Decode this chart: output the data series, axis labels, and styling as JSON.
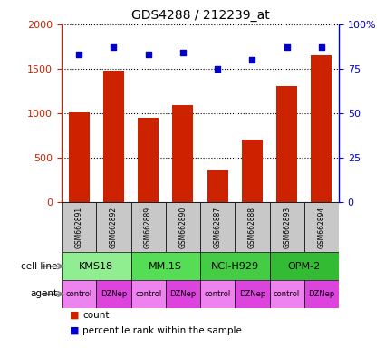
{
  "title": "GDS4288 / 212239_at",
  "samples": [
    "GSM662891",
    "GSM662892",
    "GSM662889",
    "GSM662890",
    "GSM662887",
    "GSM662888",
    "GSM662893",
    "GSM662894"
  ],
  "counts": [
    1010,
    1480,
    950,
    1090,
    350,
    700,
    1300,
    1650
  ],
  "percentile_ranks": [
    83,
    87,
    83,
    84,
    75,
    80,
    87,
    87
  ],
  "cell_lines": [
    {
      "label": "KMS18",
      "span": [
        0,
        2
      ],
      "color": "#90EE90"
    },
    {
      "label": "MM.1S",
      "span": [
        2,
        4
      ],
      "color": "#55DD55"
    },
    {
      "label": "NCI-H929",
      "span": [
        4,
        6
      ],
      "color": "#44CC44"
    },
    {
      "label": "OPM-2",
      "span": [
        6,
        8
      ],
      "color": "#33BB33"
    }
  ],
  "agents": [
    "control",
    "DZNep",
    "control",
    "DZNep",
    "control",
    "DZNep",
    "control",
    "DZNep"
  ],
  "agent_color_even": "#EE82EE",
  "agent_color_odd": "#DD44DD",
  "bar_color": "#CC2200",
  "scatter_color": "#0000CC",
  "ylim_left": [
    0,
    2000
  ],
  "ylim_right": [
    0,
    100
  ],
  "yticks_left": [
    0,
    500,
    1000,
    1500,
    2000
  ],
  "yticks_right": [
    0,
    25,
    50,
    75,
    100
  ],
  "ytick_labels_right": [
    "0",
    "25",
    "50",
    "75",
    "100%"
  ],
  "sample_box_color": "#C8C8C8",
  "left_axis_color": "#CC2200",
  "right_axis_color": "#0000CC",
  "fig_width": 4.25,
  "fig_height": 3.84,
  "dpi": 100
}
